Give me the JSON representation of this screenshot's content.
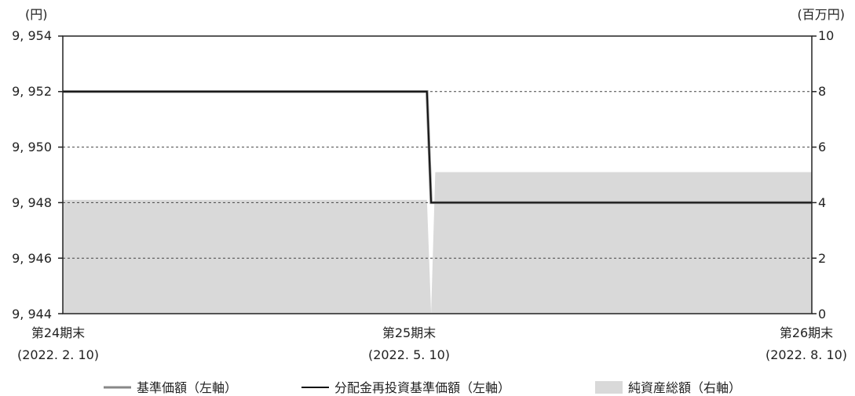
{
  "chart_data": {
    "type": "line",
    "title": "",
    "units": {
      "left": "(円)",
      "right": "(百万円)"
    },
    "y_left": {
      "lim": [
        9944,
        9954
      ],
      "ticks": [
        "9, 954",
        "9, 952",
        "9, 950",
        "9, 948",
        "9, 946",
        "9, 944"
      ],
      "tick_values": [
        9954,
        9952,
        9950,
        9948,
        9946,
        9944
      ]
    },
    "y_right": {
      "lim": [
        0,
        10
      ],
      "ticks": [
        "10",
        "8",
        "6",
        "4",
        "2",
        "0"
      ],
      "tick_values": [
        10,
        8,
        6,
        4,
        2,
        0
      ]
    },
    "x_ticks": [
      {
        "line1": "第24期末",
        "line2": "(2022. 2. 10)"
      },
      {
        "line1": "第25期末",
        "line2": "(2022. 5. 10)"
      },
      {
        "line1": "第26期末",
        "line2": "(2022. 8. 10)"
      }
    ],
    "x_range": [
      "2022-02-10",
      "2022-08-10"
    ],
    "grid": "horizontal dotted",
    "legend_position": "bottom",
    "series": [
      {
        "name": "基準価額（左軸）",
        "axis": "left",
        "kind": "line",
        "color": "#888888",
        "points": [
          [
            "2022-02-10",
            9952
          ],
          [
            "2022-05-09",
            9952
          ],
          [
            "2022-05-10",
            9948
          ],
          [
            "2022-08-10",
            9948
          ]
        ]
      },
      {
        "name": "分配金再投資基準価額（左軸）",
        "axis": "left",
        "kind": "line",
        "color": "#111111",
        "points": [
          [
            "2022-02-10",
            9952
          ],
          [
            "2022-05-09",
            9952
          ],
          [
            "2022-05-10",
            9948
          ],
          [
            "2022-08-10",
            9948
          ]
        ]
      },
      {
        "name": "純資産総額（右軸）",
        "axis": "right",
        "kind": "area",
        "color": "#d9d9d9",
        "points": [
          [
            "2022-02-10",
            4.1
          ],
          [
            "2022-05-09",
            4.1
          ],
          [
            "2022-05-10",
            0
          ],
          [
            "2022-05-11",
            5.1
          ],
          [
            "2022-08-10",
            5.1
          ]
        ]
      }
    ]
  }
}
